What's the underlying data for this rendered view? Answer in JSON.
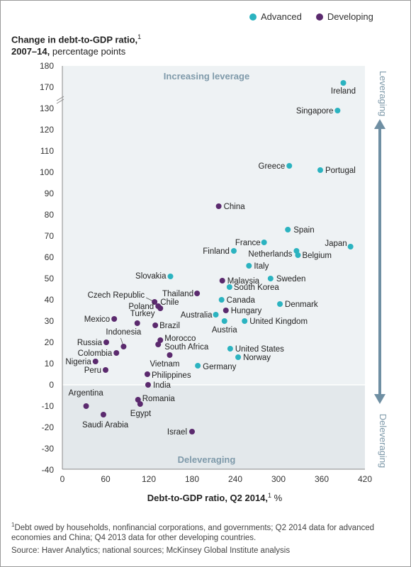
{
  "legend": {
    "advanced_label": "Advanced",
    "developing_label": "Developing",
    "advanced_color": "#2bb3c0",
    "developing_color": "#5b2a6e"
  },
  "title": {
    "line1": "Change in debt-to-GDP ratio,",
    "line1_sup": "1",
    "line2_bold": "2007–14,",
    "line2_rest": " percentage points"
  },
  "footnote": {
    "sup": "1",
    "text": "Debt owed by households, nonfinancial corporations, and governments; Q2 2014 data for advanced economies and China; Q4 2013 data for other developing countries."
  },
  "source": "Source: Haver Analytics; national sources; McKinsey Global Institute analysis",
  "chart_data": {
    "type": "scatter",
    "xlabel": "Debt-to-GDP ratio, Q2 2014,",
    "xlabel_sup": "1",
    "xlabel_unit": " %",
    "xlim": [
      0,
      420
    ],
    "xticks": [
      0,
      60,
      120,
      180,
      240,
      300,
      360,
      420
    ],
    "ylim": [
      -40,
      180
    ],
    "yticks": [
      -40,
      -30,
      -20,
      -10,
      0,
      10,
      20,
      30,
      40,
      50,
      60,
      70,
      80,
      90,
      100,
      110,
      120,
      130,
      170,
      180
    ],
    "y_axis_break": [
      130,
      170
    ],
    "grid": false,
    "legend_position": "top-right",
    "regions": {
      "upper_label": "Increasing leverage",
      "lower_label": "Deleveraging",
      "arrow_top_label": "Leveraging",
      "arrow_bottom_label": "Deleveraging"
    },
    "series": [
      {
        "name": "Advanced",
        "color": "#2bb3c0",
        "points": [
          {
            "label": "Ireland",
            "x": 390,
            "y": 172
          },
          {
            "label": "Singapore",
            "x": 382,
            "y": 129
          },
          {
            "label": "Greece",
            "x": 315,
            "y": 103
          },
          {
            "label": "Portugal",
            "x": 358,
            "y": 101
          },
          {
            "label": "Spain",
            "x": 313,
            "y": 73
          },
          {
            "label": "France",
            "x": 280,
            "y": 67
          },
          {
            "label": "Netherlands",
            "x": 325,
            "y": 63
          },
          {
            "label": "Belgium",
            "x": 327,
            "y": 61
          },
          {
            "label": "Japan",
            "x": 400,
            "y": 65
          },
          {
            "label": "Finland",
            "x": 238,
            "y": 63
          },
          {
            "label": "Italy",
            "x": 259,
            "y": 56
          },
          {
            "label": "Slovakia",
            "x": 150,
            "y": 51
          },
          {
            "label": "Sweden",
            "x": 289,
            "y": 50
          },
          {
            "label": "South Korea",
            "x": 232,
            "y": 46
          },
          {
            "label": "Canada",
            "x": 221,
            "y": 40
          },
          {
            "label": "Denmark",
            "x": 302,
            "y": 38
          },
          {
            "label": "Australia",
            "x": 213,
            "y": 33
          },
          {
            "label": "Austria",
            "x": 225,
            "y": 30
          },
          {
            "label": "United Kingdom",
            "x": 253,
            "y": 30
          },
          {
            "label": "United States",
            "x": 233,
            "y": 17
          },
          {
            "label": "Norway",
            "x": 244,
            "y": 13
          },
          {
            "label": "Germany",
            "x": 188,
            "y": 9
          }
        ]
      },
      {
        "name": "Developing",
        "color": "#5b2a6e",
        "points": [
          {
            "label": "China",
            "x": 217,
            "y": 84
          },
          {
            "label": "Malaysia",
            "x": 222,
            "y": 49
          },
          {
            "label": "Thailand",
            "x": 187,
            "y": 43
          },
          {
            "label": "Czech Republic",
            "x": 128,
            "y": 39
          },
          {
            "label": "Poland",
            "x": 133,
            "y": 37
          },
          {
            "label": "Chile",
            "x": 136,
            "y": 36
          },
          {
            "label": "Hungary",
            "x": 227,
            "y": 35
          },
          {
            "label": "Mexico",
            "x": 72,
            "y": 31
          },
          {
            "label": "Turkey",
            "x": 104,
            "y": 29
          },
          {
            "label": "Brazil",
            "x": 129,
            "y": 28
          },
          {
            "label": "Russia",
            "x": 61,
            "y": 20
          },
          {
            "label": "Indonesia",
            "x": 85,
            "y": 18
          },
          {
            "label": "Colombia",
            "x": 75,
            "y": 15
          },
          {
            "label": "Morocco",
            "x": 136,
            "y": 21
          },
          {
            "label": "South Africa",
            "x": 133,
            "y": 19
          },
          {
            "label": "Vietnam",
            "x": 149,
            "y": 14
          },
          {
            "label": "Nigeria",
            "x": 46,
            "y": 11
          },
          {
            "label": "Peru",
            "x": 60,
            "y": 7
          },
          {
            "label": "Philippines",
            "x": 118,
            "y": 5
          },
          {
            "label": "India",
            "x": 119,
            "y": 0
          },
          {
            "label": "Romania",
            "x": 105,
            "y": -7
          },
          {
            "label": "Egypt",
            "x": 108,
            "y": -9
          },
          {
            "label": "Argentina",
            "x": 33,
            "y": -10
          },
          {
            "label": "Saudi Arabia",
            "x": 57,
            "y": -14
          },
          {
            "label": "Israel",
            "x": 180,
            "y": -22
          }
        ]
      }
    ]
  }
}
